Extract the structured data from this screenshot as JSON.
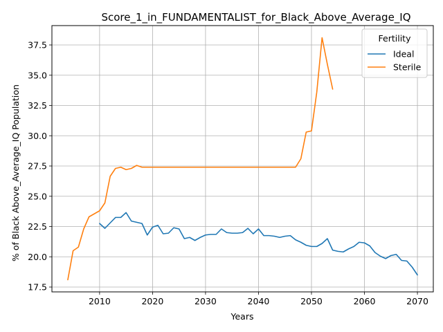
{
  "chart_data": {
    "type": "line",
    "title": "Score_1_in_FUNDAMENTALIST_for_Black_Above_Average_IQ",
    "xlabel": "Years",
    "ylabel": "% of Black Above_Average_IQ Population",
    "xlim": [
      2001,
      2073
    ],
    "ylim": [
      17.1,
      39.1
    ],
    "xticks": [
      2010,
      2020,
      2030,
      2040,
      2050,
      2060,
      2070
    ],
    "yticks": [
      17.5,
      20.0,
      22.5,
      25.0,
      27.5,
      30.0,
      32.5,
      35.0,
      37.5
    ],
    "ytick_labels": [
      "17.5",
      "20.0",
      "22.5",
      "25.0",
      "27.5",
      "30.0",
      "32.5",
      "35.0",
      "37.5"
    ],
    "grid": true,
    "legend": {
      "title": "Fertility",
      "position": "top-right"
    },
    "series": [
      {
        "name": "Ideal",
        "color": "#1f77b4",
        "x": [
          2010,
          2011,
          2012,
          2013,
          2014,
          2015,
          2016,
          2017,
          2018,
          2019,
          2020,
          2021,
          2022,
          2023,
          2024,
          2025,
          2026,
          2027,
          2028,
          2029,
          2030,
          2031,
          2032,
          2033,
          2034,
          2035,
          2036,
          2037,
          2038,
          2039,
          2040,
          2041,
          2042,
          2043,
          2044,
          2045,
          2046,
          2047,
          2048,
          2049,
          2050,
          2051,
          2052,
          2053,
          2054,
          2055,
          2056,
          2057,
          2058,
          2059,
          2060,
          2061,
          2062,
          2063,
          2064,
          2065,
          2066,
          2067,
          2068,
          2069,
          2070
        ],
        "y": [
          22.75,
          22.35,
          22.8,
          23.25,
          23.25,
          23.65,
          22.95,
          22.85,
          22.75,
          21.8,
          22.45,
          22.6,
          21.9,
          21.95,
          22.4,
          22.3,
          21.5,
          21.6,
          21.35,
          21.6,
          21.8,
          21.85,
          21.85,
          22.3,
          22.0,
          21.95,
          21.95,
          22.0,
          22.35,
          21.9,
          22.3,
          21.75,
          21.75,
          21.7,
          21.6,
          21.7,
          21.75,
          21.4,
          21.2,
          20.95,
          20.85,
          20.85,
          21.1,
          21.5,
          20.55,
          20.45,
          20.4,
          20.65,
          20.85,
          21.2,
          21.15,
          20.9,
          20.35,
          20.05,
          19.85,
          20.1,
          20.2,
          19.7,
          19.65,
          19.15,
          18.5
        ]
      },
      {
        "name": "Sterile",
        "color": "#ff7f0e",
        "x": [
          2004,
          2005,
          2006,
          2007,
          2008,
          2009,
          2010,
          2011,
          2012,
          2013,
          2014,
          2015,
          2016,
          2017,
          2018,
          2019,
          2020,
          2021,
          2022,
          2023,
          2024,
          2025,
          2026,
          2027,
          2028,
          2029,
          2030,
          2031,
          2032,
          2033,
          2034,
          2035,
          2036,
          2037,
          2038,
          2039,
          2040,
          2041,
          2042,
          2043,
          2044,
          2045,
          2046,
          2047,
          2048,
          2049,
          2050,
          2051,
          2052,
          2053,
          2054
        ],
        "y": [
          18.1,
          20.5,
          20.8,
          22.3,
          23.3,
          23.55,
          23.8,
          24.45,
          26.65,
          27.3,
          27.4,
          27.2,
          27.3,
          27.55,
          27.4,
          27.4,
          27.4,
          27.4,
          27.4,
          27.4,
          27.4,
          27.4,
          27.4,
          27.4,
          27.4,
          27.4,
          27.4,
          27.4,
          27.4,
          27.4,
          27.4,
          27.4,
          27.4,
          27.4,
          27.4,
          27.4,
          27.4,
          27.4,
          27.4,
          27.4,
          27.4,
          27.4,
          27.4,
          27.4,
          28.1,
          30.3,
          30.4,
          33.6,
          38.1,
          35.9,
          33.85
        ]
      }
    ]
  }
}
